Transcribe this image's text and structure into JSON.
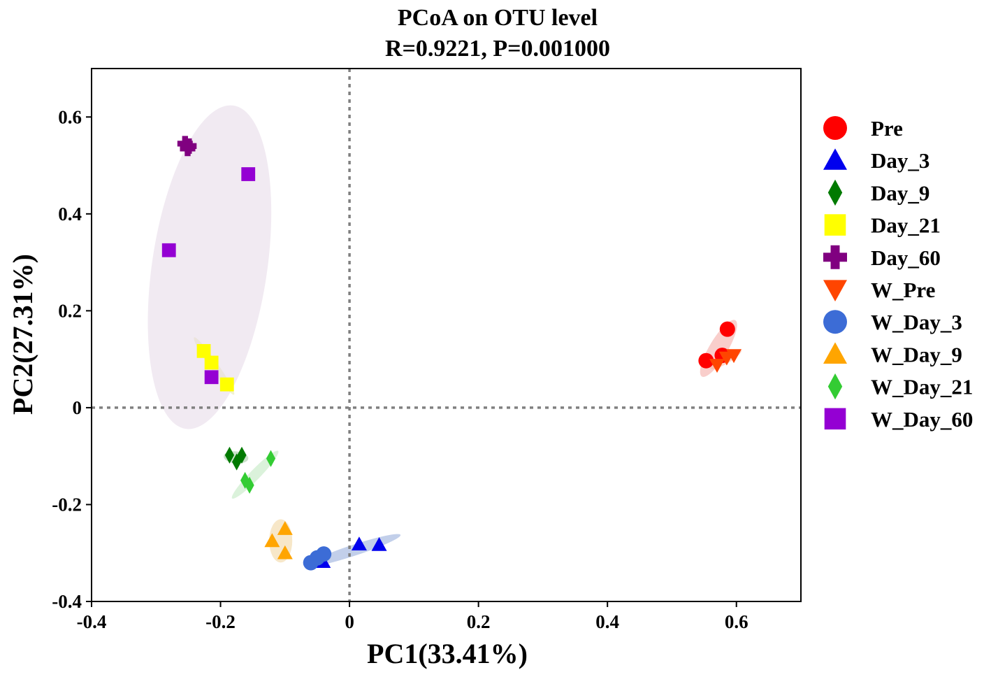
{
  "chart_data": {
    "type": "scatter",
    "title": "PCoA on OTU level",
    "subtitle": "R=0.9221, P=0.001000",
    "xlabel": "PC1(33.41%)",
    "ylabel": "PC2(27.31%)",
    "xlim": [
      -0.4,
      0.7
    ],
    "ylim": [
      -0.4,
      0.7
    ],
    "xticks": [
      -0.4,
      -0.2,
      0,
      0.2,
      0.4,
      0.6
    ],
    "xtick_labels": [
      "-0.4",
      "-0.2",
      "0",
      "0.2",
      "0.4",
      "0.6"
    ],
    "yticks": [
      -0.4,
      -0.2,
      0,
      0.2,
      0.4,
      0.6
    ],
    "ytick_labels": [
      "-0.4",
      "-0.2",
      "0",
      "0.2",
      "0.4",
      "0.6"
    ],
    "reference_lines": {
      "x": 0,
      "y": 0,
      "style": "dotted",
      "color": "#808080"
    },
    "legend_position": "right",
    "series": [
      {
        "name": "Pre",
        "marker": "circle",
        "color": "#ff0000",
        "ellipse_color": "#f4a6a0",
        "points": [
          [
            0.553,
            0.097
          ],
          [
            0.586,
            0.162
          ],
          [
            0.578,
            0.108
          ]
        ]
      },
      {
        "name": "Day_3",
        "marker": "triangle-up",
        "color": "#0000ee",
        "ellipse_color": "#8fa8d8",
        "points": [
          [
            0.015,
            -0.282
          ],
          [
            0.046,
            -0.283
          ],
          [
            -0.041,
            -0.318
          ]
        ]
      },
      {
        "name": "Day_9",
        "marker": "diamond",
        "color": "#007a00",
        "ellipse_color": "#9fc99f",
        "points": [
          [
            -0.186,
            -0.098
          ],
          [
            -0.167,
            -0.098
          ],
          [
            -0.175,
            -0.112
          ]
        ]
      },
      {
        "name": "Day_21",
        "marker": "square",
        "color": "#ffff00",
        "ellipse_color": "#e8e8a8",
        "points": [
          [
            -0.226,
            0.117
          ],
          [
            -0.214,
            0.093
          ],
          [
            -0.19,
            0.048
          ]
        ]
      },
      {
        "name": "Day_60",
        "marker": "cross",
        "color": "#800080",
        "ellipse_color": "#c9a6c9",
        "points": [
          [
            -0.255,
            0.545
          ],
          [
            -0.251,
            0.535
          ],
          [
            -0.249,
            0.54
          ]
        ]
      },
      {
        "name": "W_Pre",
        "marker": "triangle-down",
        "color": "#ff4500",
        "ellipse_color": "#f8b6a0",
        "points": [
          [
            0.57,
            0.088
          ],
          [
            0.585,
            0.103
          ],
          [
            0.596,
            0.108
          ]
        ]
      },
      {
        "name": "W_Day_3",
        "marker": "circle",
        "color": "#3c6cd6",
        "ellipse_color": "#9ab8cc",
        "points": [
          [
            -0.06,
            -0.32
          ],
          [
            -0.05,
            -0.31
          ],
          [
            -0.04,
            -0.302
          ]
        ]
      },
      {
        "name": "W_Day_9",
        "marker": "triangle-up",
        "color": "#ffa500",
        "ellipse_color": "#f0d49a",
        "points": [
          [
            -0.12,
            -0.275
          ],
          [
            -0.1,
            -0.25
          ],
          [
            -0.1,
            -0.3
          ]
        ]
      },
      {
        "name": "W_Day_21",
        "marker": "diamond",
        "color": "#33cc33",
        "ellipse_color": "#bde8bd",
        "points": [
          [
            -0.162,
            -0.15
          ],
          [
            -0.155,
            -0.16
          ],
          [
            -0.122,
            -0.105
          ]
        ]
      },
      {
        "name": "W_Day_60",
        "marker": "square",
        "color": "#9400d3",
        "ellipse_color": "#e6d8e8",
        "points": [
          [
            -0.28,
            0.325
          ],
          [
            -0.157,
            0.482
          ],
          [
            -0.214,
            0.063
          ]
        ]
      }
    ]
  }
}
